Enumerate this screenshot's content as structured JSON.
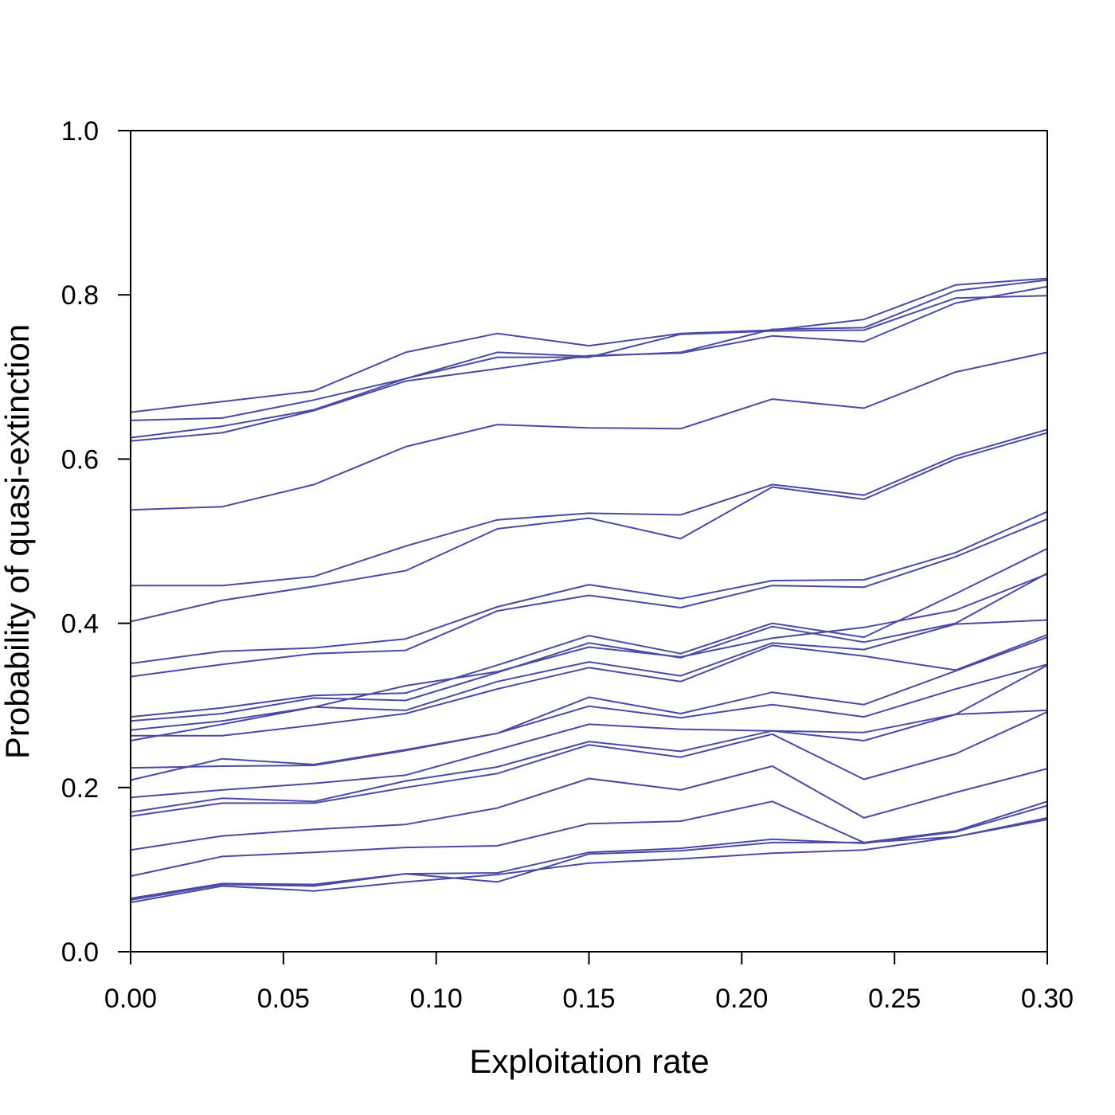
{
  "chart_data": {
    "type": "line",
    "title": "",
    "xlabel": "Exploitation rate",
    "ylabel": "Probability of quasi-extinction",
    "xlim": [
      0,
      0.3
    ],
    "ylim": [
      0,
      1
    ],
    "x_ticks": [
      "0.00",
      "0.05",
      "0.10",
      "0.15",
      "0.20",
      "0.25",
      "0.30"
    ],
    "y_ticks": [
      "0.0",
      "0.2",
      "0.4",
      "0.6",
      "0.8",
      "1.0"
    ],
    "x_tick_values": [
      0,
      0.05,
      0.1,
      0.15,
      0.2,
      0.25,
      0.3
    ],
    "y_tick_values": [
      0,
      0.2,
      0.4,
      0.6,
      0.8,
      1.0
    ],
    "line_color": "#4a4aa6",
    "grid": false,
    "legend": "none",
    "x": [
      0,
      0.03,
      0.06,
      0.09,
      0.12,
      0.15,
      0.18,
      0.21,
      0.24,
      0.27,
      0.3
    ],
    "series": [
      {
        "values": [
          0.657,
          0.67,
          0.683,
          0.73,
          0.753,
          0.738,
          0.753,
          0.757,
          0.77,
          0.812,
          0.82
        ]
      },
      {
        "values": [
          0.647,
          0.65,
          0.672,
          0.698,
          0.73,
          0.725,
          0.73,
          0.758,
          0.76,
          0.805,
          0.818
        ]
      },
      {
        "values": [
          0.626,
          0.64,
          0.66,
          0.698,
          0.724,
          0.724,
          0.752,
          0.756,
          0.757,
          0.796,
          0.799
        ]
      },
      {
        "values": [
          0.622,
          0.632,
          0.659,
          0.695,
          0.71,
          0.726,
          0.729,
          0.75,
          0.743,
          0.79,
          0.81
        ]
      },
      {
        "values": [
          0.538,
          0.542,
          0.569,
          0.615,
          0.642,
          0.638,
          0.637,
          0.673,
          0.662,
          0.706,
          0.73
        ]
      },
      {
        "values": [
          0.446,
          0.446,
          0.457,
          0.494,
          0.526,
          0.534,
          0.532,
          0.569,
          0.556,
          0.604,
          0.636
        ]
      },
      {
        "values": [
          0.402,
          0.428,
          0.445,
          0.464,
          0.515,
          0.528,
          0.503,
          0.566,
          0.551,
          0.6,
          0.632
        ]
      },
      {
        "values": [
          0.351,
          0.366,
          0.37,
          0.381,
          0.42,
          0.447,
          0.43,
          0.452,
          0.453,
          0.486,
          0.536
        ]
      },
      {
        "values": [
          0.335,
          0.35,
          0.363,
          0.367,
          0.415,
          0.434,
          0.419,
          0.446,
          0.444,
          0.481,
          0.527
        ]
      },
      {
        "values": [
          0.286,
          0.297,
          0.312,
          0.315,
          0.349,
          0.385,
          0.363,
          0.4,
          0.383,
          0.436,
          0.491
        ]
      },
      {
        "values": [
          0.281,
          0.29,
          0.309,
          0.306,
          0.34,
          0.376,
          0.358,
          0.396,
          0.377,
          0.4,
          0.461
        ]
      },
      {
        "values": [
          0.257,
          0.277,
          0.298,
          0.324,
          0.341,
          0.371,
          0.359,
          0.382,
          0.395,
          0.416,
          0.46
        ]
      },
      {
        "values": [
          0.27,
          0.281,
          0.298,
          0.294,
          0.329,
          0.353,
          0.336,
          0.376,
          0.368,
          0.399,
          0.404
        ]
      },
      {
        "values": [
          0.263,
          0.263,
          0.276,
          0.29,
          0.32,
          0.346,
          0.329,
          0.373,
          0.36,
          0.343,
          0.386
        ]
      },
      {
        "values": [
          0.209,
          0.235,
          0.228,
          0.246,
          0.266,
          0.31,
          0.29,
          0.316,
          0.301,
          0.342,
          0.383
        ]
      },
      {
        "values": [
          0.224,
          0.226,
          0.227,
          0.245,
          0.266,
          0.299,
          0.285,
          0.301,
          0.286,
          0.32,
          0.35
        ]
      },
      {
        "values": [
          0.188,
          0.197,
          0.205,
          0.215,
          0.246,
          0.277,
          0.271,
          0.269,
          0.267,
          0.289,
          0.349
        ]
      },
      {
        "values": [
          0.17,
          0.187,
          0.183,
          0.208,
          0.225,
          0.256,
          0.244,
          0.269,
          0.257,
          0.289,
          0.294
        ]
      },
      {
        "values": [
          0.165,
          0.181,
          0.181,
          0.2,
          0.217,
          0.252,
          0.237,
          0.265,
          0.21,
          0.241,
          0.292
        ]
      },
      {
        "values": [
          0.124,
          0.141,
          0.149,
          0.155,
          0.175,
          0.211,
          0.197,
          0.226,
          0.163,
          0.194,
          0.223
        ]
      },
      {
        "values": [
          0.092,
          0.116,
          0.121,
          0.127,
          0.129,
          0.156,
          0.159,
          0.183,
          0.133,
          0.147,
          0.183
        ]
      },
      {
        "values": [
          0.065,
          0.083,
          0.082,
          0.095,
          0.096,
          0.121,
          0.126,
          0.137,
          0.132,
          0.146,
          0.178
        ]
      },
      {
        "values": [
          0.063,
          0.082,
          0.08,
          0.095,
          0.085,
          0.119,
          0.123,
          0.133,
          0.133,
          0.14,
          0.163
        ]
      },
      {
        "values": [
          0.06,
          0.08,
          0.074,
          0.085,
          0.094,
          0.108,
          0.113,
          0.12,
          0.124,
          0.14,
          0.161
        ]
      }
    ]
  }
}
